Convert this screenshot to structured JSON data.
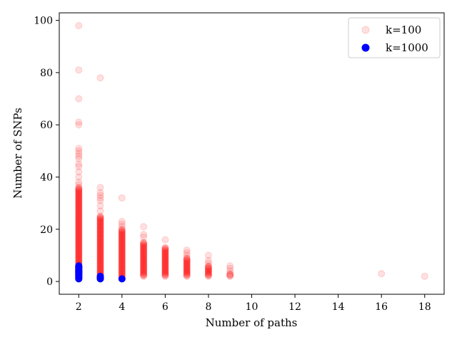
{
  "chart_data": {
    "type": "scatter",
    "title": "",
    "xlabel": "Number of paths",
    "ylabel": "Number of SNPs",
    "xlim": [
      1.1,
      18.9
    ],
    "ylim": [
      -4.9,
      102.9
    ],
    "xticks": [
      "2",
      "4",
      "6",
      "8",
      "10",
      "12",
      "14",
      "16",
      "18"
    ],
    "yticks": [
      "0",
      "20",
      "40",
      "60",
      "80",
      "100"
    ],
    "grid": false,
    "legend_position": "top-right",
    "series": [
      {
        "name": "k=100",
        "color": "#ff0000",
        "alpha": 0.12,
        "columns": [
          {
            "x": 2,
            "min": 1,
            "max": 36,
            "extra": [
              37,
              38,
              40,
              42,
              44,
              45,
              47,
              48,
              49,
              50,
              51,
              60,
              61,
              70,
              81,
              98
            ]
          },
          {
            "x": 3,
            "min": 1,
            "max": 25,
            "extra": [
              27,
              29,
              31,
              32,
              33,
              34,
              36,
              78
            ]
          },
          {
            "x": 4,
            "min": 1,
            "max": 20,
            "extra": [
              21,
              22,
              23,
              32
            ]
          },
          {
            "x": 5,
            "min": 2,
            "max": 15,
            "extra": [
              17,
              18,
              21
            ]
          },
          {
            "x": 6,
            "min": 2,
            "max": 13,
            "extra": [
              16
            ]
          },
          {
            "x": 7,
            "min": 2,
            "max": 9,
            "extra": [
              10,
              11,
              12
            ]
          },
          {
            "x": 8,
            "min": 2,
            "max": 6,
            "extra": [
              7,
              8,
              10
            ]
          },
          {
            "x": 9,
            "min": 2,
            "max": 3,
            "extra": [
              4,
              5,
              6
            ]
          }
        ],
        "points": [
          [
            16,
            3
          ],
          [
            18,
            2
          ]
        ]
      },
      {
        "name": "k=1000",
        "color": "#0000ff",
        "alpha": 1,
        "columns": [
          {
            "x": 2,
            "min": 1,
            "max": 6,
            "extra": []
          },
          {
            "x": 3,
            "min": 1,
            "max": 2,
            "extra": []
          },
          {
            "x": 4,
            "min": 1,
            "max": 1,
            "extra": []
          }
        ],
        "points": []
      }
    ]
  }
}
